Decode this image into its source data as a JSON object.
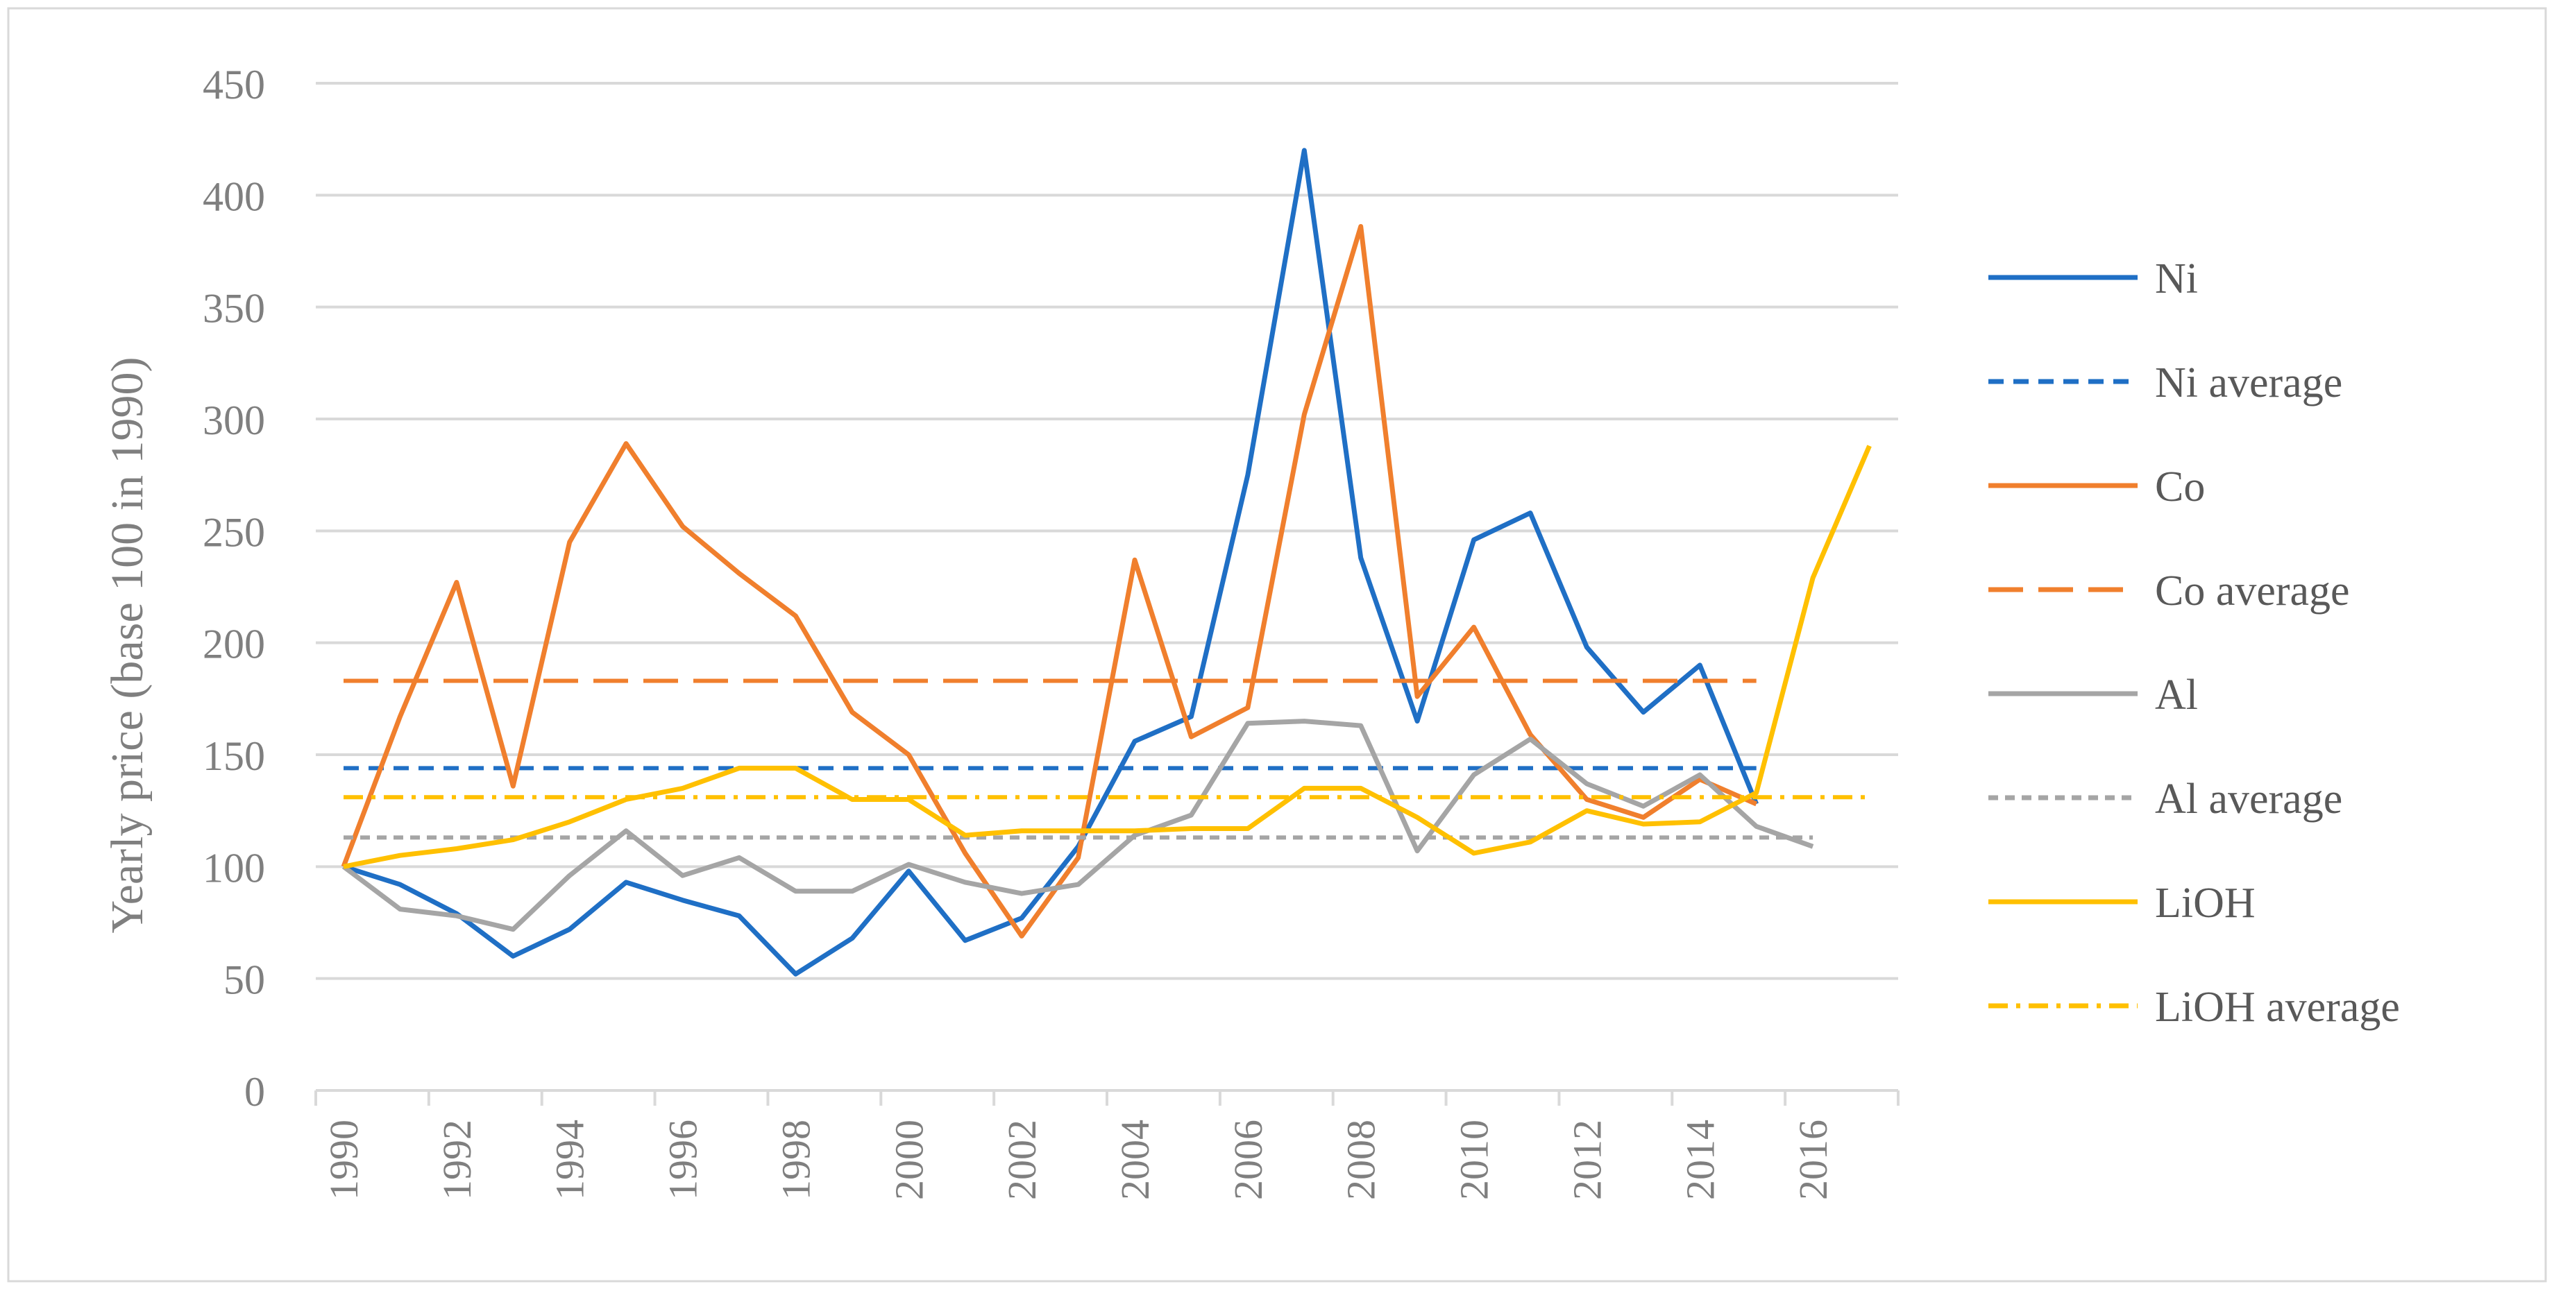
{
  "chart_data": {
    "type": "line",
    "title": "",
    "xlabel": "",
    "ylabel": "Yearly price (base 100 in 1990)",
    "x": [
      1990,
      1991,
      1992,
      1993,
      1994,
      1995,
      1996,
      1997,
      1998,
      1999,
      2000,
      2001,
      2002,
      2003,
      2004,
      2005,
      2006,
      2007,
      2008,
      2009,
      2010,
      2011,
      2012,
      2013,
      2014,
      2015,
      2016,
      2017
    ],
    "x_ticks": [
      "1990",
      "1992",
      "1994",
      "1996",
      "1998",
      "2000",
      "2002",
      "2004",
      "2006",
      "2008",
      "2010",
      "2012",
      "2014",
      "2016"
    ],
    "ylim": [
      0,
      450
    ],
    "y_ticks": [
      "0",
      "50",
      "100",
      "150",
      "200",
      "250",
      "300",
      "350",
      "400",
      "450"
    ],
    "grid": true,
    "legend_position": "right",
    "series": [
      {
        "name": "Ni",
        "color": "#1F6FC5",
        "style": "solid",
        "values": [
          100,
          92,
          79,
          60,
          72,
          93,
          85,
          78,
          52,
          68,
          98,
          67,
          77,
          109,
          156,
          167,
          275,
          420,
          238,
          165,
          246,
          258,
          198,
          169,
          190,
          128,
          null,
          null
        ]
      },
      {
        "name": "Ni average",
        "color": "#1F6FC5",
        "style": "dash",
        "values": [
          144,
          144,
          144,
          144,
          144,
          144,
          144,
          144,
          144,
          144,
          144,
          144,
          144,
          144,
          144,
          144,
          144,
          144,
          144,
          144,
          144,
          144,
          144,
          144,
          144,
          144,
          null,
          null
        ]
      },
      {
        "name": "Co",
        "color": "#F07F2D",
        "style": "solid",
        "values": [
          100,
          167,
          227,
          136,
          245,
          289,
          252,
          231,
          212,
          169,
          150,
          106,
          69,
          104,
          237,
          158,
          171,
          302,
          386,
          176,
          207,
          159,
          130,
          122,
          139,
          128,
          null,
          null
        ]
      },
      {
        "name": "Co average",
        "color": "#F07F2D",
        "style": "longdash",
        "values": [
          183,
          183,
          183,
          183,
          183,
          183,
          183,
          183,
          183,
          183,
          183,
          183,
          183,
          183,
          183,
          183,
          183,
          183,
          183,
          183,
          183,
          183,
          183,
          183,
          183,
          183,
          null,
          null
        ]
      },
      {
        "name": "Al",
        "color": "#A5A5A5",
        "style": "solid",
        "values": [
          100,
          81,
          78,
          72,
          96,
          116,
          96,
          104,
          89,
          89,
          101,
          93,
          88,
          92,
          114,
          123,
          164,
          165,
          163,
          107,
          141,
          157,
          137,
          127,
          141,
          118,
          109,
          null
        ]
      },
      {
        "name": "Al average",
        "color": "#A5A5A5",
        "style": "shortdash",
        "values": [
          113,
          113,
          113,
          113,
          113,
          113,
          113,
          113,
          113,
          113,
          113,
          113,
          113,
          113,
          113,
          113,
          113,
          113,
          113,
          113,
          113,
          113,
          113,
          113,
          113,
          113,
          113,
          null
        ]
      },
      {
        "name": "LiOH",
        "color": "#FFC000",
        "style": "solid",
        "values": [
          100,
          105,
          108,
          112,
          120,
          130,
          135,
          144,
          144,
          130,
          130,
          114,
          116,
          116,
          116,
          117,
          117,
          135,
          135,
          122,
          106,
          111,
          125,
          119,
          120,
          133,
          229,
          288
        ]
      },
      {
        "name": "LiOH average",
        "color": "#FFC000",
        "style": "dashdot",
        "values": [
          131,
          131,
          131,
          131,
          131,
          131,
          131,
          131,
          131,
          131,
          131,
          131,
          131,
          131,
          131,
          131,
          131,
          131,
          131,
          131,
          131,
          131,
          131,
          131,
          131,
          131,
          131,
          131
        ]
      }
    ]
  }
}
